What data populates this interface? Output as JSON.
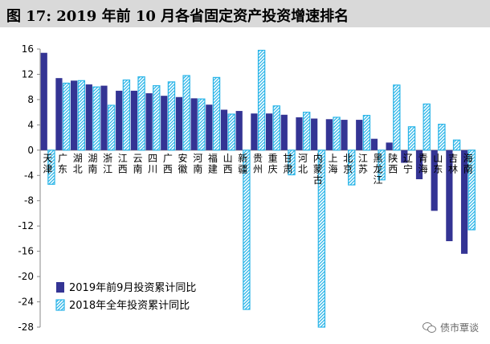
{
  "title": "图 17:  2019 年前 10 月各省固定资产投资增速排名",
  "watermark": "债市覃谈",
  "colors": {
    "series_2019": "#343494",
    "series_2018": "#2bb5e8",
    "hatch_bg": "#ffffff"
  },
  "chart_data": {
    "type": "bar",
    "categories": [
      "天津",
      "广东",
      "湖北",
      "湖南",
      "浙江",
      "江西",
      "云南",
      "四川",
      "广西",
      "安徽",
      "河南",
      "福建",
      "山西",
      "新疆",
      "贵州",
      "重庆",
      "甘肃",
      "河北",
      "内蒙古",
      "上海",
      "北京",
      "江苏",
      "黑龙江",
      "陕西",
      "辽宁",
      "青海",
      "山东",
      "吉林",
      "海南"
    ],
    "series": [
      {
        "name": "2019年前9月投资累计同比",
        "pattern": "solid",
        "values": [
          15.4,
          11.4,
          11.0,
          10.4,
          10.2,
          9.4,
          9.4,
          9.0,
          8.6,
          8.4,
          8.2,
          7.2,
          6.4,
          6.2,
          5.8,
          5.8,
          5.6,
          5.2,
          5.0,
          4.9,
          4.8,
          4.8,
          1.8,
          1.2,
          -2.0,
          -4.6,
          -9.6,
          -14.4,
          -16.4
        ]
      },
      {
        "name": "2018年全年投资累计同比",
        "pattern": "hatched",
        "values": [
          -5.4,
          10.6,
          11.0,
          10.0,
          7.1,
          11.1,
          11.6,
          10.2,
          10.8,
          11.8,
          8.1,
          11.5,
          5.7,
          -25.2,
          15.8,
          7.0,
          -3.9,
          6.0,
          -28.0,
          5.2,
          -5.5,
          5.5,
          -4.7,
          10.3,
          3.7,
          7.3,
          4.1,
          1.6,
          -12.6
        ]
      }
    ],
    "ylim": [
      -28,
      16
    ],
    "yticks": [
      16,
      12,
      8,
      4,
      0,
      -4,
      -8,
      -12,
      -16,
      -20,
      -24,
      -28
    ],
    "grid": false,
    "legend_placement": "bottom-left"
  }
}
